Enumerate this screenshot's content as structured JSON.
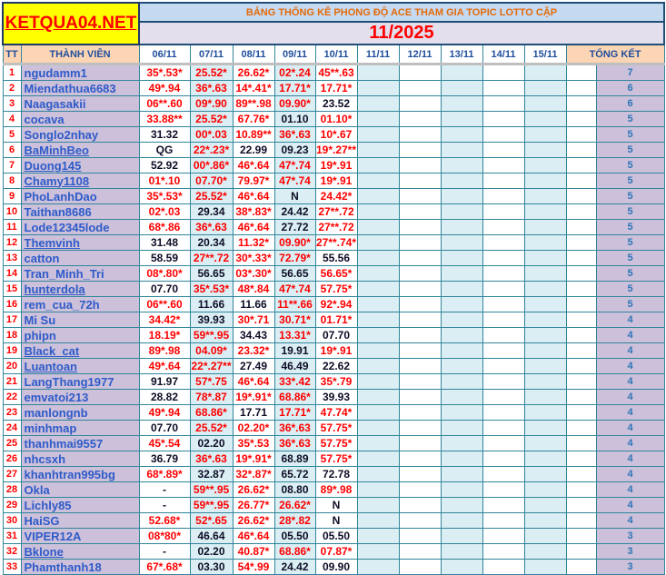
{
  "logo": "KETQUA04.NET",
  "title": "BẢNG THỐNG KÊ PHONG ĐỘ ACE THAM GIA TOPIC  LOTTO CẶP",
  "month": "11/2025",
  "headers": {
    "tt": "TT",
    "member": "THÀNH VIÊN",
    "dates": [
      "06/11",
      "07/11",
      "08/11",
      "09/11",
      "10/11",
      "11/11",
      "12/11",
      "13/11",
      "14/11",
      "15/11"
    ],
    "total": "TỔNG KẾT"
  },
  "colors": {
    "hit": "#ff0000",
    "miss": "#0d0d26",
    "name": "#2e5bc9",
    "name_bg": "#ccc0da",
    "logo_bg": "#ffff00"
  },
  "rows": [
    {
      "tt": "1",
      "name": "ngudamm1",
      "link": false,
      "scores": [
        "35*.53*",
        "25.52*",
        "26.62*",
        "02*.24",
        "45**.63"
      ],
      "total": "7"
    },
    {
      "tt": "2",
      "name": "Miendathua6683",
      "link": false,
      "scores": [
        "49*.94",
        "36*.63",
        "14*.41*",
        "17.71*",
        "17.71*"
      ],
      "total": "6"
    },
    {
      "tt": "3",
      "name": "Naagasakii",
      "link": false,
      "scores": [
        "06**.60",
        "09*.90",
        "89**.98",
        "09.90*",
        "23.52"
      ],
      "total": "6"
    },
    {
      "tt": "4",
      "name": "cocava",
      "link": false,
      "scores": [
        "33.88**",
        "25.52*",
        "67.76*",
        "01.10",
        "01.10*"
      ],
      "total": "5"
    },
    {
      "tt": "5",
      "name": "Songlo2nhay",
      "link": false,
      "scores": [
        "31.32",
        "00*.03",
        "10.89**",
        "36*.63",
        "10*.67"
      ],
      "total": "5"
    },
    {
      "tt": "6",
      "name": "BaMinhBeo",
      "link": true,
      "scores": [
        "QG",
        "22*.23*",
        "22.99",
        "09.23",
        "19*.27**"
      ],
      "total": "5"
    },
    {
      "tt": "7",
      "name": "Duong145",
      "link": true,
      "scores": [
        "52.92",
        "00*.86*",
        "46*.64",
        "47*.74",
        "19*.91"
      ],
      "total": "5"
    },
    {
      "tt": "8",
      "name": "Chamy1108",
      "link": true,
      "scores": [
        "01*.10",
        "07.70*",
        "79.97*",
        "47*.74",
        "19*.91"
      ],
      "total": "5"
    },
    {
      "tt": "9",
      "name": "PhoLanhDao",
      "link": false,
      "scores": [
        "35*.53*",
        "25.52*",
        "46*.64",
        "N",
        "24.42*"
      ],
      "total": "5"
    },
    {
      "tt": "10",
      "name": "Taithan8686",
      "link": false,
      "scores": [
        "02*.03",
        "29.34",
        "38*.83*",
        "24.42",
        "27**.72"
      ],
      "total": "5"
    },
    {
      "tt": "11",
      "name": "Lode12345lode",
      "link": false,
      "scores": [
        "68*.86",
        "36*.63",
        "46*.64",
        "27.72",
        "27**.72"
      ],
      "total": "5"
    },
    {
      "tt": "12",
      "name": "Themvinh",
      "link": true,
      "scores": [
        "31.48",
        "20.34",
        "11.32*",
        "09.90*",
        "27**.74*"
      ],
      "total": "5"
    },
    {
      "tt": "13",
      "name": "catton",
      "link": false,
      "scores": [
        "58.59",
        "27**.72",
        "30*.33*",
        "72.79*",
        "55.56"
      ],
      "total": "5"
    },
    {
      "tt": "14",
      "name": "Tran_Minh_Tri",
      "link": false,
      "scores": [
        "08*.80*",
        "56.65",
        "03*.30*",
        "56.65",
        "56.65*"
      ],
      "total": "5"
    },
    {
      "tt": "15",
      "name": "hunterdola",
      "link": true,
      "scores": [
        "07.70",
        "35*.53*",
        "48*.84",
        "47*.74",
        "57.75*"
      ],
      "total": "5"
    },
    {
      "tt": "16",
      "name": "rem_cua_72h",
      "link": false,
      "scores": [
        "06**.60",
        "11.66",
        "11.66",
        "11**.66",
        "92*.94"
      ],
      "total": "5"
    },
    {
      "tt": "17",
      "name": "Mi Su",
      "link": false,
      "scores": [
        "34.42*",
        "39.93",
        "30*.71",
        "30.71*",
        "01.71*"
      ],
      "total": "4"
    },
    {
      "tt": "18",
      "name": "phipn",
      "link": false,
      "scores": [
        "18.19*",
        "59**.95",
        "34.43",
        "13.31*",
        "07.70"
      ],
      "total": "4"
    },
    {
      "tt": "19",
      "name": "Black_cat",
      "link": true,
      "scores": [
        "89*.98",
        "04.09*",
        "23.32*",
        "19.91",
        "19*.91"
      ],
      "total": "4"
    },
    {
      "tt": "20",
      "name": "Luantoan",
      "link": true,
      "scores": [
        "49*.64",
        "22*.27**",
        "27.49",
        "46.49",
        "22.62"
      ],
      "total": "4"
    },
    {
      "tt": "21",
      "name": "LangThang1977",
      "link": false,
      "scores": [
        "91.97",
        "57*.75",
        "46*.64",
        "33*.42",
        "35*.79"
      ],
      "total": "4"
    },
    {
      "tt": "22",
      "name": "emvatoi213",
      "link": false,
      "scores": [
        "28.82",
        "78*.87",
        "19*.91*",
        "68.86*",
        "39.93"
      ],
      "total": "4"
    },
    {
      "tt": "23",
      "name": "manlongnb",
      "link": false,
      "scores": [
        "49*.94",
        "68.86*",
        "17.71",
        "17.71*",
        "47.74*"
      ],
      "total": "4"
    },
    {
      "tt": "24",
      "name": "minhmap",
      "link": false,
      "scores": [
        "07.70",
        "25.52*",
        "02.20*",
        "36*.63",
        "57.75*"
      ],
      "total": "4"
    },
    {
      "tt": "25",
      "name": "thanhmai9557",
      "link": false,
      "scores": [
        "45*.54",
        "02.20",
        "35*.53",
        "36*.63",
        "57.75*"
      ],
      "total": "4"
    },
    {
      "tt": "26",
      "name": "nhcsxh",
      "link": false,
      "scores": [
        "36.79",
        "36*.63",
        "19*.91*",
        "68.89",
        "57.75*"
      ],
      "total": "4"
    },
    {
      "tt": "27",
      "name": "khanhtran995bg",
      "link": false,
      "scores": [
        "68*.89*",
        "32.87",
        "32*.87*",
        "65.72",
        "72.78"
      ],
      "total": "4"
    },
    {
      "tt": "28",
      "name": "Okla",
      "link": false,
      "scores": [
        "-",
        "59**.95",
        "26.62*",
        "08.80",
        "89*.98"
      ],
      "total": "4"
    },
    {
      "tt": "29",
      "name": "Lichly85",
      "link": false,
      "scores": [
        "-",
        "59**.95",
        "26.77*",
        "26.62*",
        "N"
      ],
      "total": "4"
    },
    {
      "tt": "30",
      "name": "HaiSG",
      "link": false,
      "scores": [
        "52.68*",
        "52*.65",
        "26.62*",
        "28*.82",
        "N"
      ],
      "total": "4"
    },
    {
      "tt": "31",
      "name": "VIPER12A",
      "link": false,
      "scores": [
        "08*80*",
        "46.64",
        "46*.64",
        "05.50",
        "05.50"
      ],
      "total": "3"
    },
    {
      "tt": "32",
      "name": "Bklone",
      "link": true,
      "scores": [
        "-",
        "02.20",
        "40.87*",
        "68.86*",
        "07.87*"
      ],
      "total": "3"
    },
    {
      "tt": "33",
      "name": "Phamthanh18",
      "link": false,
      "scores": [
        "67*.68*",
        "03.30",
        "54*.99",
        "24.42",
        "09.90"
      ],
      "total": "3"
    }
  ]
}
